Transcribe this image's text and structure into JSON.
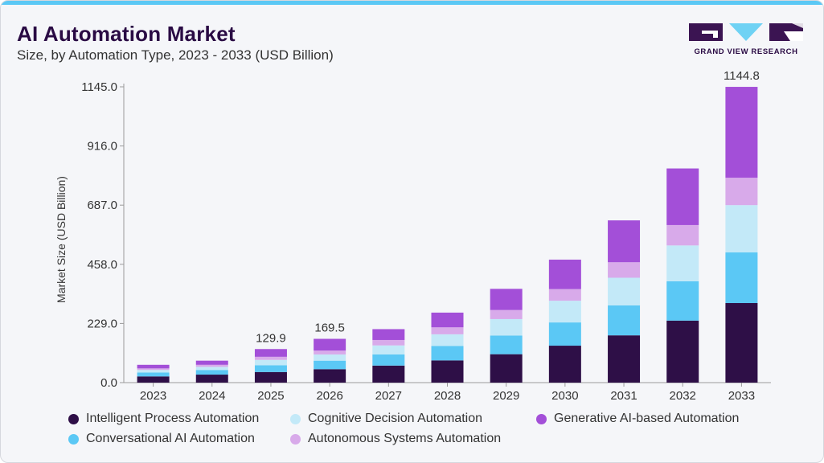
{
  "header": {
    "title": "AI Automation Market",
    "subtitle": "Size, by Automation Type, 2023 - 2033 (USD Billion)"
  },
  "logo": {
    "text": "GRAND VIEW RESEARCH",
    "letters": "GVR",
    "colors": {
      "dark": "#3b1452",
      "accent": "#6fd2f4"
    }
  },
  "colors": {
    "top_strip": "#5bc8f5",
    "axis": "#9a9a9a",
    "text": "#333333"
  },
  "chart_data": {
    "type": "bar",
    "stacked": true,
    "title": "AI Automation Market",
    "subtitle": "Size, by Automation Type, 2023 - 2033 (USD Billion)",
    "xlabel": "",
    "ylabel": "Market Size (USD Billion)",
    "ylim": [
      0,
      1145
    ],
    "yticks": [
      "0.0",
      "229.0",
      "458.0",
      "687.0",
      "916.0",
      "1145.0"
    ],
    "grid": false,
    "legend_position": "bottom",
    "categories": [
      "2023",
      "2024",
      "2025",
      "2026",
      "2027",
      "2028",
      "2029",
      "2030",
      "2031",
      "2032",
      "2033"
    ],
    "series": [
      {
        "name": "Intelligent Process Automation",
        "color": "#2e0f47",
        "values": [
          24,
          31,
          41,
          52,
          66,
          86,
          110,
          143,
          183,
          240,
          308
        ]
      },
      {
        "name": "Conversational AI Automation",
        "color": "#5bc8f5",
        "values": [
          15,
          18,
          26,
          33,
          43,
          56,
          72,
          90,
          116,
          152,
          196
        ]
      },
      {
        "name": "Cognitive Decision Automation",
        "color": "#c3e9f8",
        "values": [
          10,
          12,
          21,
          24,
          35,
          45,
          64,
          84,
          107,
          139,
          183
        ]
      },
      {
        "name": "Autonomous Systems Automation",
        "color": "#d8aaea",
        "values": [
          6,
          8,
          12,
          15,
          21,
          27,
          35,
          45,
          60,
          79,
          106
        ]
      },
      {
        "name": "Generative AI-based Automation",
        "color": "#a34fd8",
        "values": [
          14,
          16,
          29.9,
          45.5,
          42,
          57,
          82,
          114,
          162,
          219,
          351.8
        ]
      }
    ],
    "total_labels": [
      {
        "category": "2025",
        "value": "129.9"
      },
      {
        "category": "2026",
        "value": "169.5"
      },
      {
        "category": "2033",
        "value": "1144.8"
      }
    ]
  },
  "legend": [
    {
      "label": "Intelligent Process Automation",
      "color": "#2e0f47"
    },
    {
      "label": "Cognitive Decision Automation",
      "color": "#c3e9f8"
    },
    {
      "label": "Generative AI-based Automation",
      "color": "#a34fd8"
    },
    {
      "label": "Conversational AI Automation",
      "color": "#5bc8f5"
    },
    {
      "label": "Autonomous Systems Automation",
      "color": "#d8aaea"
    }
  ]
}
